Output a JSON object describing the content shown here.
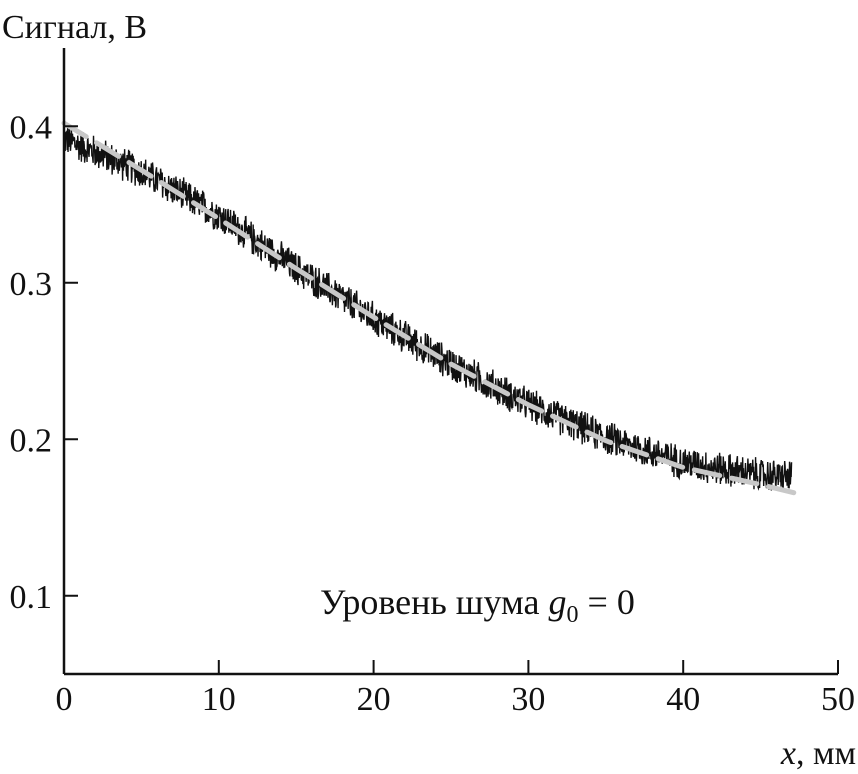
{
  "chart_data": {
    "type": "line",
    "ylabel": "Сигнал, В",
    "xlabel_var": "x",
    "xlabel_unit": ", мм",
    "xlim": [
      0,
      50
    ],
    "ylim": [
      0.05,
      0.45
    ],
    "x_ticks": [
      0,
      10,
      20,
      30,
      40,
      50
    ],
    "x_tick_labels": [
      "0",
      "10",
      "20",
      "30",
      "40",
      "50"
    ],
    "y_ticks": [
      0.1,
      0.2,
      0.3,
      0.4
    ],
    "y_tick_labels": [
      "0.1",
      "0.2",
      "0.3",
      "0.4"
    ],
    "grid": false,
    "annotation": {
      "prefix": "Уровень шума ",
      "var": "g",
      "subscript": "0",
      "suffix": " = 0"
    },
    "series": [
      {
        "style": "noisy-solid",
        "color": "#111111",
        "noise_amplitude": 0.012,
        "x": [
          0,
          5,
          10,
          15,
          20,
          25,
          30,
          35,
          40,
          45,
          47
        ],
        "y": [
          0.392,
          0.371,
          0.343,
          0.309,
          0.277,
          0.248,
          0.222,
          0.201,
          0.185,
          0.177,
          0.176
        ]
      },
      {
        "style": "dashed",
        "color": "#c8c8c8",
        "x": [
          0,
          5,
          10,
          15,
          20,
          25,
          30,
          35,
          40,
          45,
          47.5
        ],
        "y": [
          0.402,
          0.372,
          0.341,
          0.309,
          0.278,
          0.248,
          0.222,
          0.199,
          0.182,
          0.171,
          0.165
        ]
      }
    ]
  }
}
